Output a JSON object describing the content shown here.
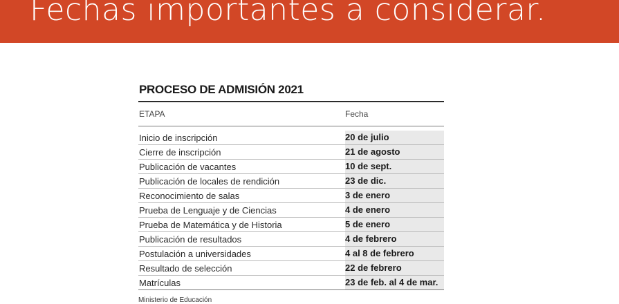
{
  "banner": {
    "title": "Fechas importantes a considerar."
  },
  "figure": {
    "title": "PROCESO DE ADMISIÓN 2021",
    "header": {
      "col1": "ETAPA",
      "col2": "Fecha"
    },
    "rows": [
      {
        "etapa": "Inicio de inscripción",
        "fecha": "20 de julio"
      },
      {
        "etapa": "Cierre de inscripción",
        "fecha": "21 de agosto"
      },
      {
        "etapa": "Publicación de vacantes",
        "fecha": "10 de sept."
      },
      {
        "etapa": "Publicación de locales de rendición",
        "fecha": "23 de dic."
      },
      {
        "etapa": "Reconocimiento de salas",
        "fecha": "3 de enero"
      },
      {
        "etapa": "Prueba de Lenguaje y de Ciencias",
        "fecha": "4 de enero"
      },
      {
        "etapa": "Prueba de Matemática y de Historia",
        "fecha": "5 de enero"
      },
      {
        "etapa": "Publicación de resultados",
        "fecha": "4 de febrero"
      },
      {
        "etapa": "Postulación a universidades",
        "fecha": "4 al 8 de febrero"
      },
      {
        "etapa": "Resultado de selección",
        "fecha": "22 de febrero"
      },
      {
        "etapa": "Matrículas",
        "fecha": "23 de feb. al 4 de mar."
      }
    ],
    "source": "Ministerio de Educación"
  },
  "colors": {
    "banner": "#d24726",
    "date_column_shade": "#e9e9e9"
  }
}
